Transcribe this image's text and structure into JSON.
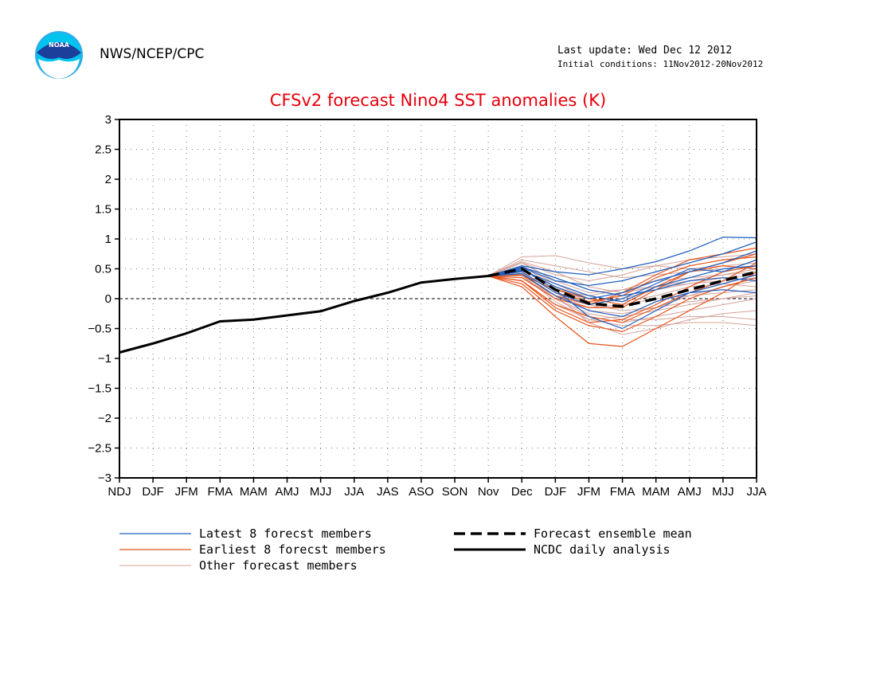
{
  "header": {
    "agency": "NWS/NCEP/CPC",
    "last_update": "Last update: Wed Dec 12 2012",
    "initial_conditions": "Initial conditions: 11Nov2012-20Nov2012",
    "logo_text": "NOAA"
  },
  "chart_data": {
    "type": "line",
    "title": "CFSv2 forecast Nino4 SST anomalies (K)",
    "xlabel": "",
    "ylabel": "",
    "categories": [
      "NDJ",
      "DJF",
      "JFM",
      "FMA",
      "MAM",
      "AMJ",
      "MJJ",
      "JJA",
      "JAS",
      "ASO",
      "SON",
      "Nov",
      "Dec",
      "DJF",
      "JFM",
      "FMA",
      "MAM",
      "AMJ",
      "MJJ",
      "JJA"
    ],
    "ylim": [
      -3,
      3
    ],
    "yticks": [
      3,
      2.5,
      2,
      1.5,
      1,
      0.5,
      0,
      -0.5,
      -1,
      -1.5,
      -2,
      -2.5,
      -3
    ],
    "ytick_labels": [
      "3",
      "2.5",
      "2",
      "1.5",
      "1",
      "0.5",
      "0",
      "−0.5",
      "−1",
      "−1.5",
      "−2",
      "−2.5",
      "−3"
    ],
    "grid": true,
    "zero_line": true,
    "colors": {
      "latest": "#1f5fbf",
      "earliest": "#e8541a",
      "other": "#d4a39a",
      "mean": "#000000",
      "analysis": "#000000"
    },
    "analysis": {
      "name": "NCDC daily analysis",
      "values": [
        -0.9,
        -0.75,
        -0.58,
        -0.38,
        -0.35,
        -0.28,
        -0.21,
        -0.04,
        0.1,
        0.27,
        0.33,
        0.38
      ]
    },
    "ensemble_mean": {
      "name": "Forecast ensemble mean",
      "values": [
        0.38,
        0.5,
        0.15,
        -0.08,
        -0.13,
        0.0,
        0.15,
        0.3,
        0.45
      ]
    },
    "latest_members": [
      [
        0.38,
        0.55,
        0.45,
        0.4,
        0.5,
        0.62,
        0.8,
        1.03,
        1.02
      ],
      [
        0.38,
        0.52,
        0.3,
        0.22,
        0.3,
        0.45,
        0.6,
        0.75,
        0.95
      ],
      [
        0.38,
        0.48,
        0.2,
        0.0,
        0.1,
        0.3,
        0.45,
        0.6,
        0.8
      ],
      [
        0.38,
        0.45,
        0.1,
        -0.1,
        0.0,
        0.25,
        0.5,
        0.45,
        0.65
      ],
      [
        0.38,
        0.5,
        0.15,
        -0.3,
        -0.5,
        -0.2,
        0.1,
        0.25,
        0.4
      ],
      [
        0.38,
        0.42,
        0.05,
        -0.2,
        -0.3,
        -0.05,
        0.1,
        0.15,
        0.1
      ],
      [
        0.38,
        0.47,
        0.25,
        0.05,
        -0.05,
        0.2,
        0.35,
        0.5,
        0.55
      ],
      [
        0.38,
        0.53,
        0.35,
        0.15,
        0.05,
        0.15,
        0.3,
        0.35,
        0.3
      ]
    ],
    "earliest_members": [
      [
        0.38,
        0.2,
        -0.3,
        -0.75,
        -0.8,
        -0.5,
        -0.2,
        0.1,
        0.45
      ],
      [
        0.38,
        0.3,
        -0.1,
        -0.3,
        -0.4,
        -0.15,
        0.1,
        0.3,
        0.6
      ],
      [
        0.38,
        0.35,
        0.0,
        -0.15,
        -0.15,
        0.15,
        0.45,
        0.6,
        0.75
      ],
      [
        0.38,
        0.4,
        0.05,
        -0.1,
        0.1,
        0.4,
        0.65,
        0.75,
        0.85
      ],
      [
        0.38,
        0.45,
        0.1,
        -0.05,
        0.05,
        0.35,
        0.55,
        0.65,
        0.7
      ],
      [
        0.38,
        0.3,
        -0.15,
        -0.4,
        -0.35,
        -0.1,
        0.2,
        0.45,
        0.55
      ],
      [
        0.38,
        0.25,
        -0.2,
        -0.45,
        -0.55,
        -0.3,
        0.0,
        0.2,
        0.35
      ],
      [
        0.38,
        0.4,
        0.15,
        0.0,
        -0.1,
        0.2,
        0.45,
        0.55,
        0.5
      ]
    ],
    "other_members": [
      [
        0.38,
        0.7,
        0.72,
        0.6,
        0.5,
        0.55,
        0.5,
        0.55,
        0.6
      ],
      [
        0.38,
        0.65,
        0.55,
        0.45,
        0.35,
        0.4,
        0.45,
        0.5,
        0.55
      ],
      [
        0.38,
        0.6,
        0.3,
        0.1,
        0.15,
        0.2,
        0.25,
        0.3,
        0.35
      ],
      [
        0.38,
        0.55,
        0.2,
        -0.1,
        -0.2,
        -0.15,
        -0.05,
        0.0,
        0.05
      ],
      [
        0.38,
        0.45,
        0.0,
        -0.25,
        -0.35,
        -0.35,
        -0.3,
        -0.3,
        -0.35
      ],
      [
        0.38,
        0.4,
        -0.05,
        -0.35,
        -0.45,
        -0.45,
        -0.4,
        -0.4,
        -0.45
      ],
      [
        0.38,
        0.5,
        0.15,
        0.05,
        0.15,
        0.3,
        0.35,
        0.4,
        0.45
      ],
      [
        0.38,
        0.35,
        0.05,
        -0.15,
        -0.1,
        0.0,
        0.05,
        0.1,
        0.15
      ],
      [
        0.38,
        0.6,
        0.4,
        0.3,
        0.4,
        0.55,
        0.65,
        0.7,
        0.75
      ],
      [
        0.38,
        0.3,
        -0.1,
        -0.35,
        -0.3,
        -0.2,
        -0.1,
        0.0,
        0.1
      ],
      [
        0.38,
        0.55,
        0.25,
        0.0,
        -0.05,
        0.05,
        0.2,
        0.25,
        0.2
      ],
      [
        0.38,
        0.45,
        0.1,
        -0.2,
        -0.25,
        -0.15,
        0.05,
        0.2,
        0.3
      ],
      [
        0.38,
        0.62,
        0.45,
        0.2,
        0.1,
        0.2,
        0.3,
        0.4,
        0.5
      ],
      [
        0.38,
        0.38,
        0.0,
        -0.3,
        -0.4,
        -0.3,
        -0.2,
        -0.1,
        0.0
      ],
      [
        0.38,
        0.5,
        0.2,
        -0.05,
        0.0,
        0.15,
        0.25,
        0.35,
        0.4
      ],
      [
        0.38,
        0.42,
        0.05,
        -0.4,
        -0.6,
        -0.5,
        -0.35,
        -0.25,
        -0.2
      ]
    ],
    "legend": [
      {
        "label": "Latest 8 forecst members",
        "style": "latest"
      },
      {
        "label": "Earliest 8 forecst members",
        "style": "earliest"
      },
      {
        "label": "Other forecast members",
        "style": "other"
      },
      {
        "label": "Forecast ensemble mean",
        "style": "mean"
      },
      {
        "label": "NCDC daily analysis",
        "style": "analysis"
      }
    ]
  }
}
